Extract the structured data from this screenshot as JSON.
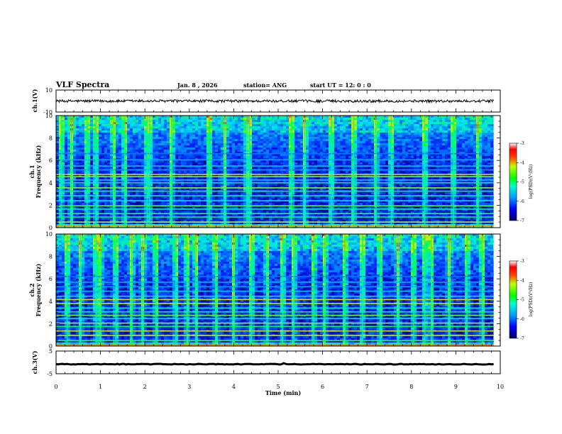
{
  "header": {
    "title": "VLF Spectra",
    "date": "Jan. 8 , 2026",
    "station": "station= ANG",
    "start": "start UT = 12: 0 : 0"
  },
  "chart_data": {
    "type": "heatmap",
    "xlabel": "Time (min)",
    "xlim": [
      0,
      10
    ],
    "xticks": [
      "0",
      "1",
      "2",
      "3",
      "4",
      "5",
      "6",
      "7",
      "8",
      "9",
      "10"
    ],
    "data_end_min": 9.85,
    "panels": [
      {
        "id": "ch1-waveform",
        "ylabel": "ch.1(V)",
        "ylim": [
          -10,
          10
        ],
        "yticks": [
          "10",
          "-10"
        ],
        "series": {
          "name": "ch.1 voltage",
          "mean": 0,
          "noise_amplitude": 1.2
        }
      },
      {
        "id": "ch1-spectrogram",
        "ylabel_line1": "ch.1",
        "ylabel_line2": "Frequency (kHz)",
        "ylim": [
          0,
          10
        ],
        "yticks": [
          "0",
          "2",
          "4",
          "6",
          "8",
          "10"
        ],
        "colorbar": {
          "label": "log(PSD)(V²/Hz)",
          "ticks": [
            "-3",
            "-4",
            "-5",
            "-6",
            "-7"
          ],
          "range": [
            -7,
            -3
          ]
        },
        "sferic_times_min": [
          0.12,
          0.35,
          0.7,
          0.9,
          1.3,
          1.55,
          2.05,
          2.1,
          2.6,
          3.45,
          3.8,
          4.3,
          4.35,
          5.3,
          5.6,
          6.2,
          6.7,
          7.2,
          7.55,
          8.3,
          8.95,
          9.5
        ],
        "bands_khz": [
          {
            "f": 0.15,
            "level": -3.6
          },
          {
            "f": 0.5,
            "level": -4.2
          },
          {
            "f": 0.95,
            "level": -4.8
          },
          {
            "f": 1.25,
            "level": -4.6
          },
          {
            "f": 1.65,
            "level": -5.0
          },
          {
            "f": 1.95,
            "level": -4.5
          },
          {
            "f": 2.4,
            "level": -5.2
          },
          {
            "f": 2.85,
            "level": -5.0
          },
          {
            "f": 3.25,
            "level": -4.7
          },
          {
            "f": 3.55,
            "level": -4.3
          },
          {
            "f": 4.0,
            "level": -4.9
          },
          {
            "f": 4.25,
            "level": -5.3
          },
          {
            "f": 4.55,
            "level": -4.4
          },
          {
            "f": 4.75,
            "level": -3.9
          },
          {
            "f": 5.15,
            "level": -5.6
          },
          {
            "f": 5.5,
            "level": -5.4
          },
          {
            "f": 6.05,
            "level": -5.5
          },
          {
            "f": 6.6,
            "level": -5.8
          }
        ]
      },
      {
        "id": "ch2-spectrogram",
        "ylabel_line1": "ch.2",
        "ylabel_line2": "Frequency (kHz)",
        "ylim": [
          0,
          10
        ],
        "yticks": [
          "0",
          "2",
          "4",
          "6",
          "8",
          "10"
        ],
        "colorbar": {
          "label": "log(PSD)(V²/Hz)",
          "ticks": [
            "-3",
            "-4",
            "-5",
            "-6",
            "-7"
          ],
          "range": [
            -7,
            -3
          ]
        },
        "sferic_times_min": [
          0.25,
          0.55,
          0.9,
          1.0,
          1.35,
          1.7,
          1.95,
          2.25,
          2.7,
          2.95,
          3.15,
          3.6,
          4.0,
          4.4,
          4.75,
          5.1,
          5.35,
          5.8,
          6.05,
          6.5,
          6.9,
          7.3,
          7.7,
          8.05,
          8.3,
          8.45,
          8.85,
          9.25,
          9.6
        ],
        "bands_khz": [
          {
            "f": 0.1,
            "level": -3.5
          },
          {
            "f": 0.5,
            "level": -4.6
          },
          {
            "f": 0.95,
            "level": -4.1
          },
          {
            "f": 1.35,
            "level": -4.0
          },
          {
            "f": 1.75,
            "level": -4.7
          },
          {
            "f": 2.05,
            "level": -4.2
          },
          {
            "f": 2.45,
            "level": -5.0
          },
          {
            "f": 2.75,
            "level": -4.4
          },
          {
            "f": 3.05,
            "level": -4.8
          },
          {
            "f": 3.4,
            "level": -5.1
          },
          {
            "f": 3.8,
            "level": -4.1
          },
          {
            "f": 4.15,
            "level": -3.9
          },
          {
            "f": 4.45,
            "level": -5.2
          },
          {
            "f": 4.9,
            "level": -5.4
          },
          {
            "f": 5.3,
            "level": -5.6
          },
          {
            "f": 5.7,
            "level": -5.5
          },
          {
            "f": 6.2,
            "level": -5.8
          }
        ]
      },
      {
        "id": "ch3-waveform",
        "ylabel": "ch.3(V)",
        "ylim": [
          -5,
          5
        ],
        "yticks": [
          "5",
          "-5"
        ],
        "series": {
          "name": "ch.3 voltage",
          "mean": -0.8,
          "noise_amplitude": 0.15
        }
      }
    ]
  }
}
